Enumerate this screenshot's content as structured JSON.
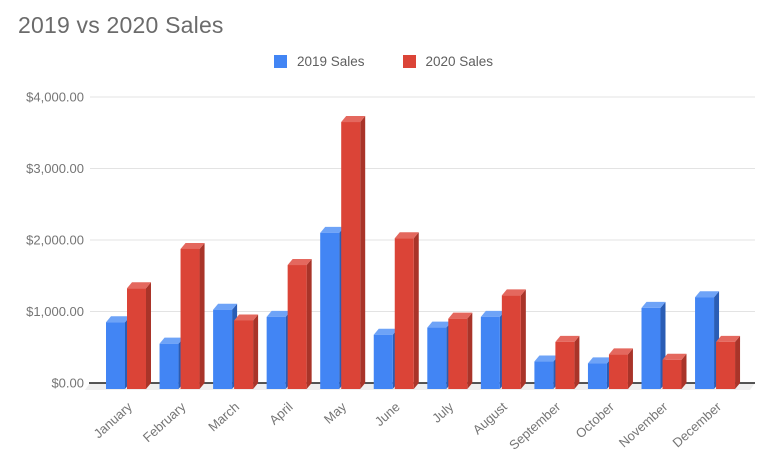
{
  "chart_data": {
    "type": "bar",
    "title": "2019 vs 2020 Sales",
    "xlabel": "",
    "ylabel": "",
    "grid": true,
    "legend_position": "top",
    "ylim": [
      0,
      4000
    ],
    "y_ticks": [
      {
        "label": "$0.00",
        "value": 0
      },
      {
        "label": "$1,000.00",
        "value": 1000
      },
      {
        "label": "$2,000.00",
        "value": 2000
      },
      {
        "label": "$3,000.00",
        "value": 3000
      },
      {
        "label": "$4,000.00",
        "value": 4000
      }
    ],
    "categories": [
      "January",
      "February",
      "March",
      "April",
      "May",
      "June",
      "July",
      "August",
      "September",
      "October",
      "November",
      "December"
    ],
    "series": [
      {
        "name": "2019 Sales",
        "color": "#4285F4",
        "color_side": "#2a5db5",
        "color_top": "#6ea3f7",
        "values": [
          850,
          550,
          1025,
          925,
          2100,
          675,
          775,
          925,
          300,
          275,
          1050,
          1200
        ]
      },
      {
        "name": "2020 Sales",
        "color": "#DB4437",
        "color_side": "#a93429",
        "color_top": "#e4685e",
        "values": [
          1325,
          1875,
          875,
          1650,
          3650,
          2025,
          900,
          1225,
          575,
          400,
          325,
          575
        ]
      }
    ]
  },
  "colors": {
    "grid": "#e3e3e3",
    "axis": "#1f1f1f",
    "floor": "#efefef",
    "tick_text": "#757575",
    "title_text": "#6b6b6b"
  }
}
